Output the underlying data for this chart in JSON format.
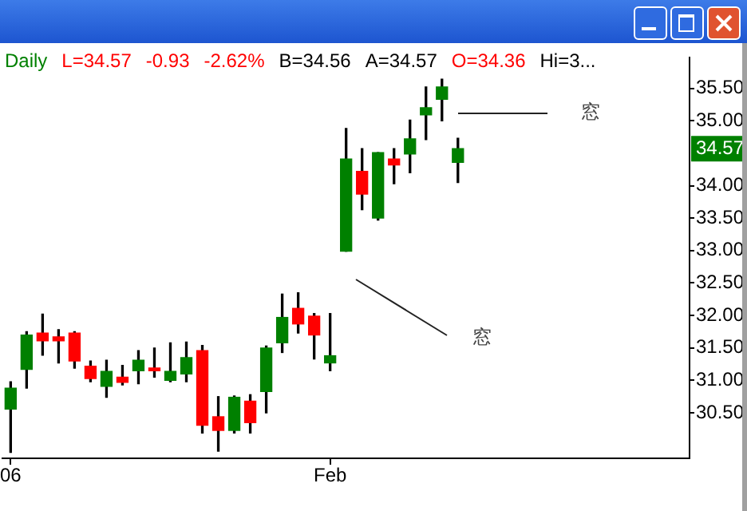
{
  "chart_data": {
    "type": "candlestick",
    "title": "Daily",
    "categories": [
      "06",
      null,
      null,
      null,
      null,
      null,
      null,
      null,
      null,
      null,
      null,
      null,
      null,
      null,
      null,
      null,
      null,
      null,
      null,
      null,
      "Feb",
      null,
      null,
      null,
      null,
      null,
      null,
      null,
      null,
      null,
      null,
      null,
      null,
      null,
      null,
      null,
      null,
      null,
      null,
      null,
      null,
      null,
      null
    ],
    "ohlc": [
      [
        30.56,
        30.98,
        29.89,
        30.88
      ],
      [
        31.17,
        31.75,
        30.88,
        31.7
      ],
      [
        31.73,
        32.02,
        31.39,
        31.61
      ],
      [
        31.67,
        31.78,
        31.27,
        31.61
      ],
      [
        31.73,
        31.75,
        31.19,
        31.3
      ],
      [
        31.22,
        31.3,
        30.98,
        31.03
      ],
      [
        30.91,
        31.31,
        30.74,
        31.14
      ],
      [
        31.05,
        31.23,
        30.93,
        30.97
      ],
      [
        31.15,
        31.46,
        30.95,
        31.31
      ],
      [
        31.19,
        31.5,
        31.05,
        31.15
      ],
      [
        31.0,
        31.58,
        30.98,
        31.14
      ],
      [
        31.1,
        31.59,
        30.98,
        31.35
      ],
      [
        31.46,
        31.54,
        30.19,
        30.31
      ],
      [
        30.44,
        30.75,
        29.91,
        30.23
      ],
      [
        30.23,
        30.76,
        30.19,
        30.74
      ],
      [
        30.68,
        30.78,
        30.19,
        30.35
      ],
      [
        30.83,
        31.53,
        30.5,
        31.5
      ],
      [
        31.58,
        32.33,
        31.43,
        31.97
      ],
      [
        32.11,
        32.35,
        31.73,
        31.87
      ],
      [
        31.99,
        32.03,
        31.33,
        31.7
      ],
      [
        31.27,
        32.03,
        31.15,
        31.38
      ],
      [
        32.99,
        34.88,
        32.99,
        34.41
      ],
      [
        34.22,
        34.57,
        33.63,
        33.87
      ],
      [
        33.5,
        34.51,
        33.47,
        34.51
      ],
      [
        34.41,
        34.57,
        34.03,
        34.32
      ],
      [
        34.49,
        35.01,
        34.2,
        34.72
      ],
      [
        35.09,
        35.52,
        34.71,
        35.2
      ],
      [
        35.33,
        35.64,
        35.0,
        35.52
      ],
      [
        34.36,
        34.73,
        34.05,
        34.57
      ],
      null,
      null,
      null,
      null,
      null,
      null,
      null,
      null,
      null,
      null,
      null,
      null,
      null,
      null
    ],
    "colors": [
      "#008000",
      "#008000",
      "#ff0000",
      "#ff0000",
      "#ff0000",
      "#ff0000",
      "#008000",
      "#ff0000",
      "#008000",
      "#ff0000",
      "#008000",
      "#008000",
      "#ff0000",
      "#ff0000",
      "#008000",
      "#ff0000",
      "#008000",
      "#008000",
      "#ff0000",
      "#ff0000",
      "#008000",
      "#008000",
      "#ff0000",
      "#008000",
      "#ff0000",
      "#008000",
      "#008000",
      "#008000",
      "#008000",
      null,
      null,
      null,
      null,
      null,
      null,
      null,
      null,
      null,
      null,
      null,
      null,
      null,
      null
    ],
    "ylim": [
      29.8,
      35.97
    ],
    "yticks": [
      {
        "value": 30.5,
        "label": "30.50"
      },
      {
        "value": 31,
        "label": "31.00"
      },
      {
        "value": 31.5,
        "label": "31.50"
      },
      {
        "value": 32,
        "label": "32.00"
      },
      {
        "value": 32.5,
        "label": "32.50"
      },
      {
        "value": 33,
        "label": "33.00"
      },
      {
        "value": 33.5,
        "label": "33.50"
      },
      {
        "value": 34,
        "label": "34.00"
      },
      {
        "value": 35,
        "label": "35.00"
      },
      {
        "value": 35.5,
        "label": "35.50"
      }
    ],
    "annotations": [
      "L=34.57",
      "-0.93",
      "-2.62%",
      "B=34.56",
      "A=34.57",
      "O=34.36",
      "Hi=3...",
      "窓",
      "窓",
      {
        "text": "34.57",
        "y": 34.57
      }
    ],
    "grid": false,
    "legend": false
  }
}
